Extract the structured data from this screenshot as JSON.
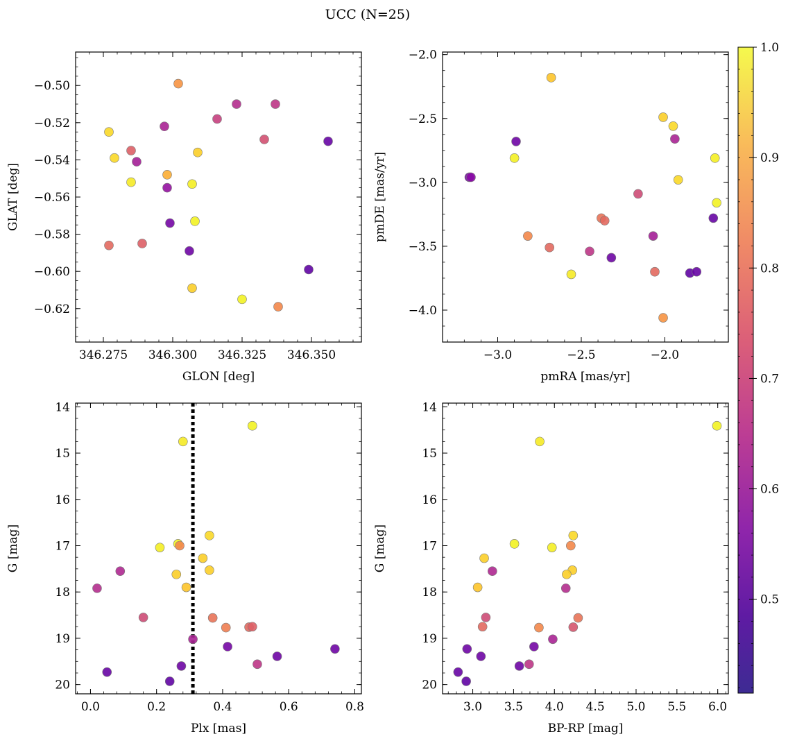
{
  "figure": {
    "title": "UCC (N=25)"
  },
  "colorbar": {
    "min": 0.415,
    "max": 1.0,
    "ticks": [
      "0.5",
      "0.6",
      "0.7",
      "0.8",
      "0.9",
      "1.0"
    ],
    "tick_values": [
      0.5,
      0.6,
      0.7,
      0.8,
      0.9,
      1.0
    ],
    "colormap": "plasma"
  },
  "chart_data": [
    {
      "type": "scatter",
      "id": "pos",
      "xlabel": "GLON [deg]",
      "ylabel": "GLAT [deg]",
      "xlim": [
        346.265,
        346.368
      ],
      "ylim": [
        -0.638,
        -0.482
      ],
      "y_inverted": false,
      "xticks": [
        346.275,
        346.3,
        346.325,
        346.35
      ],
      "xtick_labels": [
        "346.275",
        "346.300",
        "346.325",
        "346.350"
      ],
      "yticks": [
        -0.62,
        -0.6,
        -0.58,
        -0.56,
        -0.54,
        -0.52,
        -0.5
      ],
      "ytick_labels": [
        "−0.62",
        "−0.60",
        "−0.58",
        "−0.56",
        "−0.54",
        "−0.52",
        "−0.50"
      ],
      "x": [
        346.302,
        346.323,
        346.337,
        346.316,
        346.297,
        346.277,
        346.333,
        346.356,
        346.285,
        346.279,
        346.309,
        346.287,
        346.298,
        346.285,
        346.298,
        346.307,
        346.299,
        346.308,
        346.277,
        346.289,
        346.306,
        346.349,
        346.307,
        346.325,
        346.338
      ],
      "y": [
        -0.499,
        -0.51,
        -0.51,
        -0.518,
        -0.522,
        -0.525,
        -0.529,
        -0.53,
        -0.535,
        -0.539,
        -0.536,
        -0.541,
        -0.548,
        -0.552,
        -0.555,
        -0.553,
        -0.574,
        -0.573,
        -0.586,
        -0.585,
        -0.589,
        -0.599,
        -0.609,
        -0.615,
        -0.619
      ],
      "c": [
        0.78,
        0.58,
        0.6,
        0.62,
        0.56,
        0.9,
        0.65,
        0.45,
        0.68,
        0.9,
        0.88,
        0.55,
        0.82,
        0.94,
        0.52,
        0.96,
        0.47,
        0.98,
        0.7,
        0.68,
        0.46,
        0.44,
        0.88,
        0.98,
        0.76
      ]
    },
    {
      "type": "scatter",
      "id": "pm",
      "xlabel": "pmRA [mas/yr]",
      "ylabel": "pmDE [mas/yr]",
      "xlim": [
        -3.33,
        -1.62
      ],
      "ylim": [
        -4.25,
        -1.98
      ],
      "y_inverted": false,
      "xticks": [
        -3.0,
        -2.5,
        -2.0
      ],
      "xtick_labels": [
        "−3.0",
        "−2.5",
        "−2.0"
      ],
      "yticks": [
        -4.0,
        -3.5,
        -3.0,
        -2.5,
        -2.0
      ],
      "ytick_labels": [
        "−4.0",
        "−3.5",
        "−3.0",
        "−2.5",
        "−2.0"
      ],
      "x": [
        -2.68,
        -2.01,
        -1.95,
        -2.89,
        -1.94,
        -2.9,
        -1.7,
        -3.17,
        -1.92,
        -1.69,
        -2.16,
        -2.38,
        -2.36,
        -2.82,
        -2.07,
        -2.69,
        -2.45,
        -2.32,
        -1.71,
        -2.56,
        -2.06,
        -1.85,
        -1.81,
        -2.01,
        -3.16
      ],
      "y": [
        -2.18,
        -2.49,
        -2.56,
        -2.68,
        -2.66,
        -2.81,
        -2.81,
        -2.96,
        -2.98,
        -3.16,
        -3.09,
        -3.28,
        -3.3,
        -3.42,
        -3.42,
        -3.51,
        -3.54,
        -3.59,
        -3.28,
        -3.72,
        -3.7,
        -3.71,
        -3.7,
        -4.06,
        -2.96
      ],
      "c": [
        0.86,
        0.88,
        0.9,
        0.46,
        0.56,
        0.97,
        0.96,
        0.47,
        0.9,
        0.98,
        0.64,
        0.72,
        0.7,
        0.76,
        0.55,
        0.7,
        0.6,
        0.46,
        0.45,
        0.94,
        0.7,
        0.44,
        0.45,
        0.78,
        0.5
      ]
    },
    {
      "type": "scatter",
      "id": "plx",
      "xlabel": "Plx [mas]",
      "ylabel": "G [mag]",
      "xlim": [
        -0.045,
        0.82
      ],
      "ylim": [
        20.2,
        13.92
      ],
      "y_inverted": true,
      "vline": 0.31,
      "xticks": [
        0.0,
        0.2,
        0.4,
        0.6,
        0.8
      ],
      "xtick_labels": [
        "0.0",
        "0.2",
        "0.4",
        "0.6",
        "0.8"
      ],
      "yticks": [
        14,
        15,
        16,
        17,
        18,
        19,
        20
      ],
      "ytick_labels": [
        "14",
        "15",
        "16",
        "17",
        "18",
        "19",
        "20"
      ],
      "x": [
        0.49,
        0.28,
        0.36,
        0.265,
        0.21,
        0.34,
        0.36,
        0.26,
        0.09,
        0.02,
        0.29,
        0.16,
        0.37,
        0.41,
        0.48,
        0.49,
        0.31,
        0.415,
        0.74,
        0.565,
        0.505,
        0.275,
        0.05,
        0.24,
        0.27
      ],
      "y": [
        14.41,
        14.75,
        16.78,
        16.96,
        17.04,
        17.27,
        17.53,
        17.62,
        17.55,
        17.92,
        17.9,
        18.55,
        18.56,
        18.77,
        18.76,
        18.75,
        19.02,
        19.18,
        19.23,
        19.39,
        19.56,
        19.6,
        19.73,
        19.93,
        17.0
      ],
      "c": [
        0.98,
        0.94,
        0.9,
        0.98,
        0.96,
        0.88,
        0.88,
        0.88,
        0.57,
        0.58,
        0.86,
        0.64,
        0.72,
        0.74,
        0.7,
        0.68,
        0.56,
        0.47,
        0.46,
        0.46,
        0.6,
        0.46,
        0.45,
        0.44,
        0.76
      ]
    },
    {
      "type": "scatter",
      "id": "cmd",
      "xlabel": "BP-RP [mag]",
      "ylabel": "G [mag]",
      "xlim": [
        2.63,
        6.13
      ],
      "ylim": [
        20.2,
        13.92
      ],
      "y_inverted": true,
      "xticks": [
        3.0,
        3.5,
        4.0,
        4.5,
        5.0,
        5.5,
        6.0
      ],
      "xtick_labels": [
        "3.0",
        "3.5",
        "4.0",
        "4.5",
        "5.0",
        "5.5",
        "6.0"
      ],
      "yticks": [
        14,
        15,
        16,
        17,
        18,
        19,
        20
      ],
      "ytick_labels": [
        "14",
        "15",
        "16",
        "17",
        "18",
        "19",
        "20"
      ],
      "x": [
        5.99,
        3.82,
        4.23,
        3.51,
        3.97,
        3.14,
        4.22,
        4.15,
        3.24,
        4.14,
        3.06,
        3.16,
        3.81,
        3.12,
        4.23,
        4.29,
        3.98,
        3.75,
        2.93,
        3.1,
        3.69,
        3.57,
        2.82,
        2.92,
        4.2
      ],
      "y": [
        14.41,
        14.75,
        16.78,
        16.96,
        17.04,
        17.27,
        17.53,
        17.62,
        17.55,
        17.92,
        17.9,
        18.55,
        18.77,
        18.75,
        18.76,
        18.56,
        19.02,
        19.18,
        19.23,
        19.39,
        19.56,
        19.6,
        19.73,
        19.93,
        17.0
      ],
      "c": [
        0.98,
        0.94,
        0.9,
        0.98,
        0.96,
        0.88,
        0.88,
        0.88,
        0.57,
        0.58,
        0.86,
        0.64,
        0.76,
        0.7,
        0.66,
        0.72,
        0.56,
        0.47,
        0.46,
        0.46,
        0.6,
        0.46,
        0.45,
        0.44,
        0.76
      ]
    }
  ]
}
